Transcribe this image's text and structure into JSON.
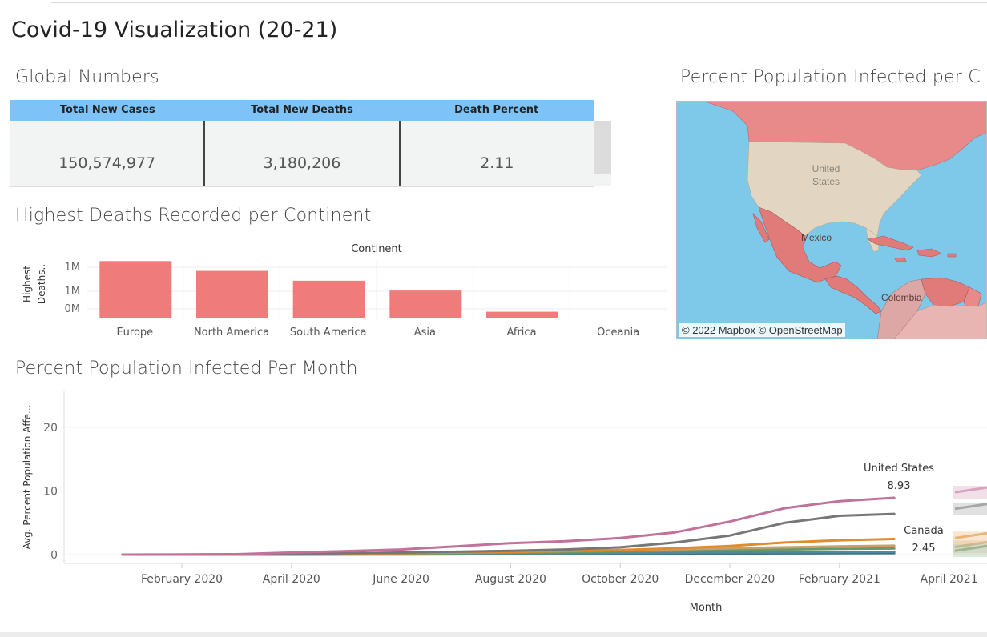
{
  "dashboard": {
    "title": "Covid-19 Visualization (20-21)"
  },
  "global_numbers": {
    "title": "Global Numbers",
    "headers": [
      "Total New Cases",
      "Total New Deaths",
      "Death Percent"
    ],
    "values": [
      "150,574,977",
      "3,180,206",
      "2.11"
    ],
    "header_color": "#7dc3f7"
  },
  "deaths_by_continent": {
    "title": "Highest Deaths Recorded per Continent",
    "header": "Continent",
    "ylabel": "Highest Deaths..",
    "yticks": [
      "1M",
      "1M",
      "0M"
    ]
  },
  "map": {
    "title": "Percent Population Infected per C",
    "labels": {
      "us_line1": "United",
      "us_line2": "States",
      "mexico": "Mexico",
      "colombia": "Colombia"
    },
    "attribution_1": "© 2022 Mapbox",
    "attribution_2": "© OpenStreetMap",
    "colors": {
      "ocean": "#7ec8ea",
      "land": "#e2d6c2",
      "high": "#e8898a",
      "low": "#dca7a4"
    }
  },
  "infected_per_month": {
    "title": "Percent Population Infected Per Month",
    "xlabel": "Month",
    "ylabel": "Avg. Percent Population Affe...",
    "yticks": [
      "20",
      "10",
      "0"
    ],
    "annotations": [
      {
        "name": "United States",
        "value": "8.93"
      },
      {
        "name": "Canada",
        "value": "2.45"
      }
    ]
  },
  "chart_data": [
    {
      "type": "bar",
      "title": "Highest Deaths Recorded per Continent",
      "xlabel": "Continent",
      "ylabel": "Highest Deaths..",
      "categories": [
        "Europe",
        "North America",
        "South America",
        "Asia",
        "Africa",
        "Oceania"
      ],
      "values": [
        1110000,
        920000,
        730000,
        540000,
        130000,
        1000
      ],
      "ylim": [
        0,
        1130000
      ],
      "color": "#f07b7b",
      "grid": true
    },
    {
      "type": "line",
      "title": "Percent Population Infected Per Month",
      "xlabel": "Month",
      "ylabel": "Avg. Percent Population Affe...",
      "x": [
        "2020-01",
        "2020-02",
        "2020-03",
        "2020-04",
        "2020-05",
        "2020-06",
        "2020-07",
        "2020-08",
        "2020-09",
        "2020-10",
        "2020-11",
        "2020-12",
        "2021-01",
        "2021-02",
        "2021-03"
      ],
      "xticks": [
        "February 2020",
        "April 2020",
        "June 2020",
        "August 2020",
        "October 2020",
        "December 2020",
        "February 2021",
        "April 2021"
      ],
      "ylim": [
        -1.5,
        26
      ],
      "series": [
        {
          "name": "United States",
          "color": "#c3719a",
          "values": [
            0,
            0.01,
            0.06,
            0.33,
            0.55,
            0.8,
            1.3,
            1.8,
            2.1,
            2.6,
            3.5,
            5.2,
            7.3,
            8.4,
            8.93
          ]
        },
        {
          "color": "#777777",
          "values": [
            0,
            0.01,
            0.03,
            0.12,
            0.22,
            0.32,
            0.45,
            0.6,
            0.8,
            1.15,
            1.9,
            3.0,
            5.0,
            6.1,
            6.4
          ]
        },
        {
          "name": "Canada",
          "color": "#e08b2e",
          "values": [
            0,
            0.0,
            0.02,
            0.08,
            0.15,
            0.25,
            0.32,
            0.42,
            0.55,
            0.72,
            1.0,
            1.35,
            1.9,
            2.25,
            2.45
          ]
        },
        {
          "color": "#c9a06a",
          "values": [
            0,
            0.0,
            0.02,
            0.1,
            0.2,
            0.3,
            0.4,
            0.5,
            0.6,
            0.7,
            0.85,
            1.0,
            1.15,
            1.3,
            1.4
          ]
        },
        {
          "color": "#6a9a6a",
          "values": [
            0,
            0.0,
            0.01,
            0.05,
            0.1,
            0.15,
            0.22,
            0.3,
            0.4,
            0.5,
            0.6,
            0.7,
            0.8,
            0.9,
            0.95
          ]
        },
        {
          "color": "#4e8a9a",
          "values": [
            0,
            0.0,
            0.01,
            0.03,
            0.05,
            0.08,
            0.12,
            0.16,
            0.2,
            0.25,
            0.3,
            0.34,
            0.38,
            0.41,
            0.44
          ]
        },
        {
          "color": "#3b6f8a",
          "values": [
            0,
            0.0,
            0.0,
            0.01,
            0.02,
            0.03,
            0.05,
            0.07,
            0.09,
            0.12,
            0.14,
            0.17,
            0.2,
            0.22,
            0.24
          ]
        }
      ],
      "grid": true
    }
  ]
}
